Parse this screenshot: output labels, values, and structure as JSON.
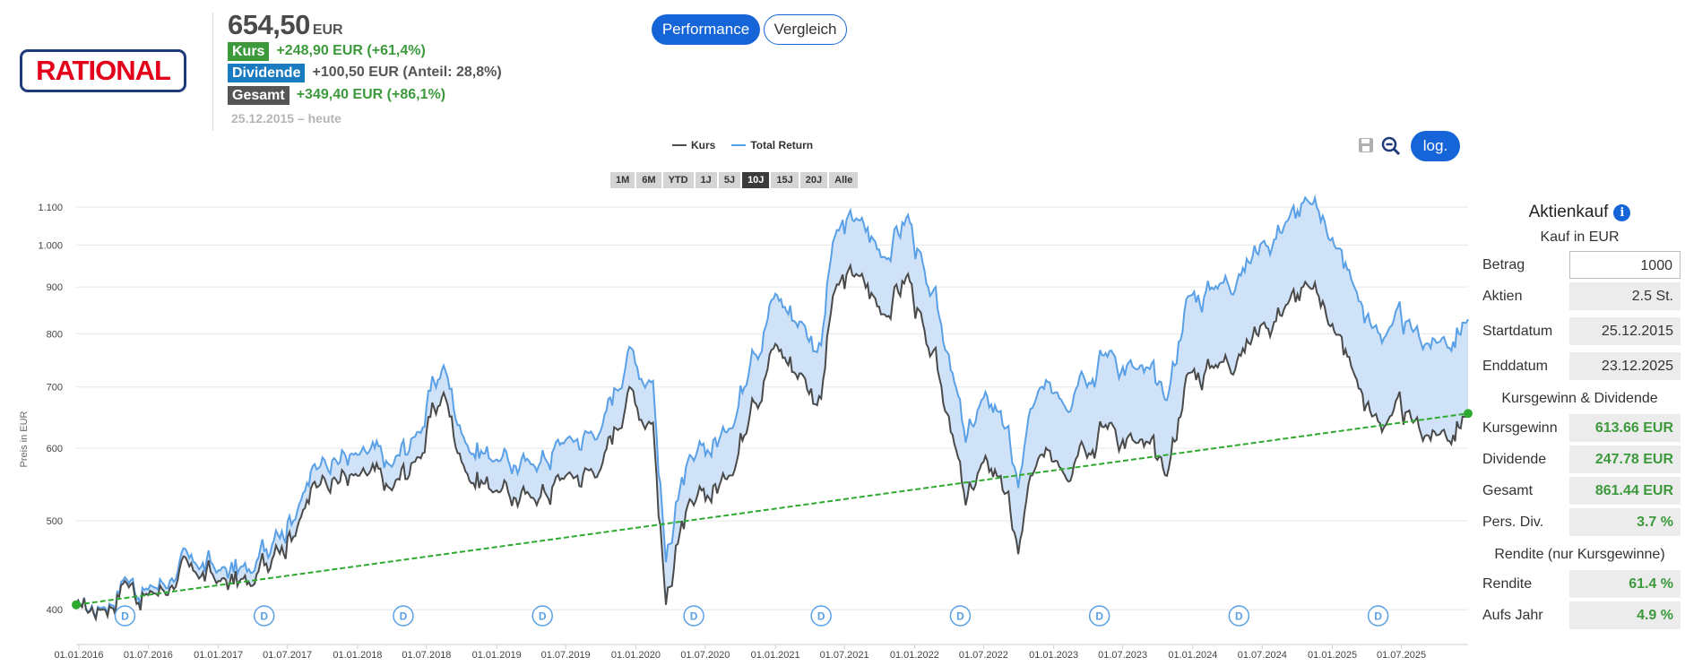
{
  "header": {
    "logo_text": "RATIONAL",
    "price": "654,50",
    "price_currency": "EUR",
    "stats": [
      {
        "tag": "Kurs",
        "text": "+248,90 EUR (+61,4%)"
      },
      {
        "tag": "Dividende",
        "text": "+100,50 EUR (Anteil: 28,8%)"
      },
      {
        "tag": "Gesamt",
        "text": "+349,40 EUR (+86,1%)"
      }
    ],
    "period": "25.12.2015 – heute",
    "mode_buttons": [
      "Performance",
      "Vergleich"
    ],
    "log_label": "log."
  },
  "ranges": [
    "1M",
    "6M",
    "YTD",
    "1J",
    "5J",
    "10J",
    "15J",
    "20J",
    "Alle"
  ],
  "selected_range": "10J",
  "colors": {
    "kurs": "#4a4a4a",
    "total_return": "#5aa0e6",
    "fill": "#cfe2f7",
    "trend": "#2eaa2e",
    "dividend": "#5aa0e6"
  },
  "chart_data": {
    "type": "line",
    "title": "",
    "xlabel": "",
    "ylabel": "Preis in EUR",
    "y_scale": "log",
    "ylim": [
      380,
      1110
    ],
    "y_ticks": [
      400,
      500,
      600,
      700,
      800,
      900,
      1000,
      1100
    ],
    "y_tick_labels": [
      "400",
      "500",
      "600",
      "700",
      "800",
      "900",
      "1.000",
      "1.100"
    ],
    "x_range": [
      "2015-12-25",
      "2025-12-23"
    ],
    "x_tick_labels": [
      "01.01.2016",
      "01.07.2016",
      "01.01.2017",
      "01.07.2017",
      "01.01.2018",
      "01.07.2018",
      "01.01.2019",
      "01.07.2019",
      "01.01.2020",
      "01.07.2020",
      "01.01.2021",
      "01.07.2021",
      "01.01.2022",
      "01.07.2022",
      "01.01.2023",
      "01.07.2023",
      "01.01.2024",
      "01.07.2024",
      "01.01.2025",
      "01.07.2025"
    ],
    "legend": [
      "Kurs",
      "Total Return"
    ],
    "legend_position": "top-center",
    "grid": true,
    "series": [
      {
        "name": "Kurs",
        "x": [
          "2015-12-25",
          "2016-03-01",
          "2016-05-01",
          "2016-07-01",
          "2016-09-01",
          "2016-11-01",
          "2017-01-01",
          "2017-04-01",
          "2017-06-01",
          "2017-08-01",
          "2017-10-01",
          "2018-01-01",
          "2018-04-01",
          "2018-06-01",
          "2018-08-15",
          "2018-10-01",
          "2019-01-01",
          "2019-04-01",
          "2019-07-01",
          "2019-10-01",
          "2019-12-15",
          "2020-02-15",
          "2020-03-20",
          "2020-04-15",
          "2020-06-01",
          "2020-09-01",
          "2020-11-01",
          "2021-01-01",
          "2021-03-15",
          "2021-05-01",
          "2021-06-01",
          "2021-08-01",
          "2021-10-15",
          "2021-12-15",
          "2022-02-01",
          "2022-04-01",
          "2022-05-15",
          "2022-07-01",
          "2022-08-15",
          "2022-09-30",
          "2022-11-01",
          "2023-01-01",
          "2023-03-15",
          "2023-06-01",
          "2023-08-01",
          "2023-10-25",
          "2023-12-15",
          "2024-03-01",
          "2024-05-01",
          "2024-07-01",
          "2024-09-01",
          "2024-11-01",
          "2025-01-01",
          "2025-03-01",
          "2025-04-15",
          "2025-06-01",
          "2025-08-01",
          "2025-10-01",
          "2025-12-23"
        ],
        "values": [
          405,
          400,
          430,
          415,
          425,
          440,
          430,
          425,
          470,
          500,
          560,
          560,
          540,
          580,
          690,
          580,
          540,
          530,
          560,
          570,
          700,
          640,
          405,
          470,
          520,
          560,
          680,
          780,
          720,
          680,
          880,
          930,
          840,
          930,
          780,
          650,
          520,
          580,
          560,
          460,
          560,
          580,
          610,
          640,
          610,
          560,
          720,
          740,
          760,
          820,
          860,
          900,
          820,
          720,
          650,
          650,
          640,
          620,
          655
        ]
      },
      {
        "name": "Total Return",
        "x": [
          "2015-12-25",
          "2016-03-01",
          "2016-05-01",
          "2016-07-01",
          "2016-09-01",
          "2016-11-01",
          "2017-01-01",
          "2017-04-01",
          "2017-06-01",
          "2017-08-01",
          "2017-10-01",
          "2018-01-01",
          "2018-04-01",
          "2018-06-01",
          "2018-08-15",
          "2018-10-01",
          "2019-01-01",
          "2019-04-01",
          "2019-07-01",
          "2019-10-01",
          "2019-12-15",
          "2020-02-15",
          "2020-03-20",
          "2020-04-15",
          "2020-06-01",
          "2020-09-01",
          "2020-11-01",
          "2021-01-01",
          "2021-03-15",
          "2021-05-01",
          "2021-06-01",
          "2021-08-01",
          "2021-10-15",
          "2021-12-15",
          "2022-02-01",
          "2022-04-01",
          "2022-05-15",
          "2022-07-01",
          "2022-08-15",
          "2022-09-30",
          "2022-11-01",
          "2023-01-01",
          "2023-03-15",
          "2023-06-01",
          "2023-08-01",
          "2023-10-25",
          "2023-12-15",
          "2024-03-01",
          "2024-05-01",
          "2024-07-01",
          "2024-09-01",
          "2024-11-01",
          "2025-01-01",
          "2025-03-01",
          "2025-04-15",
          "2025-06-01",
          "2025-08-01",
          "2025-10-01",
          "2025-12-23"
        ],
        "values": [
          405,
          402,
          435,
          422,
          433,
          450,
          442,
          440,
          490,
          523,
          588,
          590,
          572,
          617,
          740,
          625,
          587,
          580,
          616,
          630,
          775,
          712,
          452,
          528,
          585,
          635,
          773,
          890,
          826,
          785,
          1015,
          1075,
          982,
          1090,
          917,
          768,
          617,
          690,
          668,
          551,
          673,
          700,
          740,
          780,
          747,
          688,
          885,
          912,
          940,
          1018,
          1068,
          1120,
          1022,
          900,
          815,
          818,
          808,
          786,
          830
        ]
      },
      {
        "name": "Trend",
        "x": [
          "2015-12-25",
          "2025-12-23"
        ],
        "values": [
          405,
          655
        ]
      }
    ],
    "dividends": [
      "2016-05-01",
      "2017-05-01",
      "2018-05-01",
      "2019-05-01",
      "2020-06-01",
      "2021-05-01",
      "2022-05-01",
      "2023-05-01",
      "2024-05-01",
      "2025-05-01"
    ],
    "dividend_label": "D"
  },
  "panel": {
    "title": "Aktienkauf",
    "subtitle": "Kauf in EUR",
    "inputs": [
      {
        "label": "Betrag",
        "value": "1000"
      },
      {
        "label": "Aktien",
        "value": "2.5 St."
      },
      {
        "label": "Startdatum",
        "value": "25.12.2015"
      },
      {
        "label": "Enddatum",
        "value": "23.12.2025"
      }
    ],
    "section1": "Kursgewinn & Dividende",
    "results1": [
      {
        "label": "Kursgewinn",
        "value": "613.66 EUR"
      },
      {
        "label": "Dividende",
        "value": "247.78 EUR"
      },
      {
        "label": "Gesamt",
        "value": "861.44 EUR"
      },
      {
        "label": "Pers. Div.",
        "value": "3.7 %"
      }
    ],
    "section2": "Rendite (nur Kursgewinne)",
    "results2": [
      {
        "label": "Rendite",
        "value": "61.4 %"
      },
      {
        "label": "Aufs Jahr",
        "value": "4.9 %"
      }
    ]
  }
}
